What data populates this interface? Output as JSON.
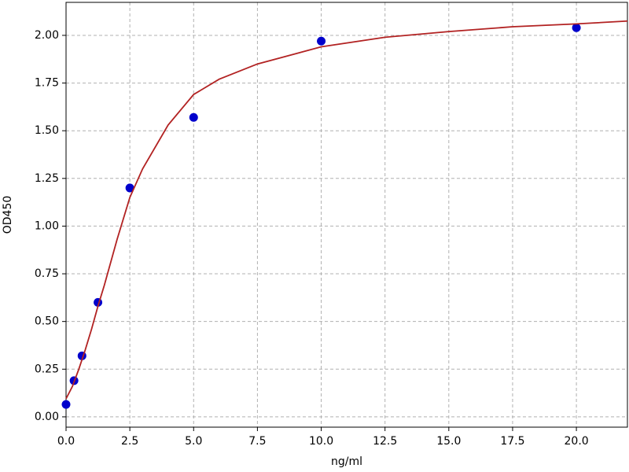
{
  "chart_data": {
    "type": "scatter",
    "xlabel": "ng/ml",
    "ylabel": "OD450",
    "xlim": [
      0,
      22
    ],
    "ylim": [
      -0.054,
      2.173
    ],
    "xticks": [
      {
        "value": 0,
        "label": "0.0"
      },
      2.5,
      {
        "value": 5,
        "label": "5.0"
      },
      7.5,
      {
        "value": 10,
        "label": "10.0"
      },
      12.5,
      {
        "value": 15,
        "label": "15.0"
      },
      17.5,
      {
        "value": 20,
        "label": "20.0"
      }
    ],
    "yticks": [
      {
        "value": 0,
        "label": "0.00"
      },
      {
        "value": 0.25,
        "label": "0.25"
      },
      {
        "value": 0.5,
        "label": "0.50"
      },
      {
        "value": 0.75,
        "label": "0.75"
      },
      {
        "value": 1,
        "label": "1.00"
      },
      {
        "value": 1.25,
        "label": "1.25"
      },
      {
        "value": 1.5,
        "label": "1.50"
      },
      {
        "value": 1.75,
        "label": "1.75"
      },
      {
        "value": 2,
        "label": "2.00"
      }
    ],
    "grid": true,
    "series": [
      {
        "type": "scatter",
        "color": "#0000cc",
        "x": [
          0,
          0.3125,
          0.625,
          1.25,
          2.5,
          5,
          10,
          20
        ],
        "values": [
          0.065,
          0.19,
          0.32,
          0.6,
          1.2,
          1.57,
          1.97,
          2.04
        ]
      },
      {
        "type": "line",
        "color": "#b22222",
        "x": [
          0,
          0.25,
          0.5,
          0.75,
          1,
          1.25,
          1.5,
          2,
          2.5,
          3,
          4,
          5,
          6,
          7.5,
          10,
          12.5,
          15,
          17.5,
          20,
          22
        ],
        "values": [
          0.095,
          0.16,
          0.25,
          0.35,
          0.46,
          0.58,
          0.69,
          0.93,
          1.15,
          1.3,
          1.53,
          1.69,
          1.77,
          1.85,
          1.94,
          1.99,
          2.02,
          2.045,
          2.06,
          2.075
        ]
      }
    ]
  }
}
